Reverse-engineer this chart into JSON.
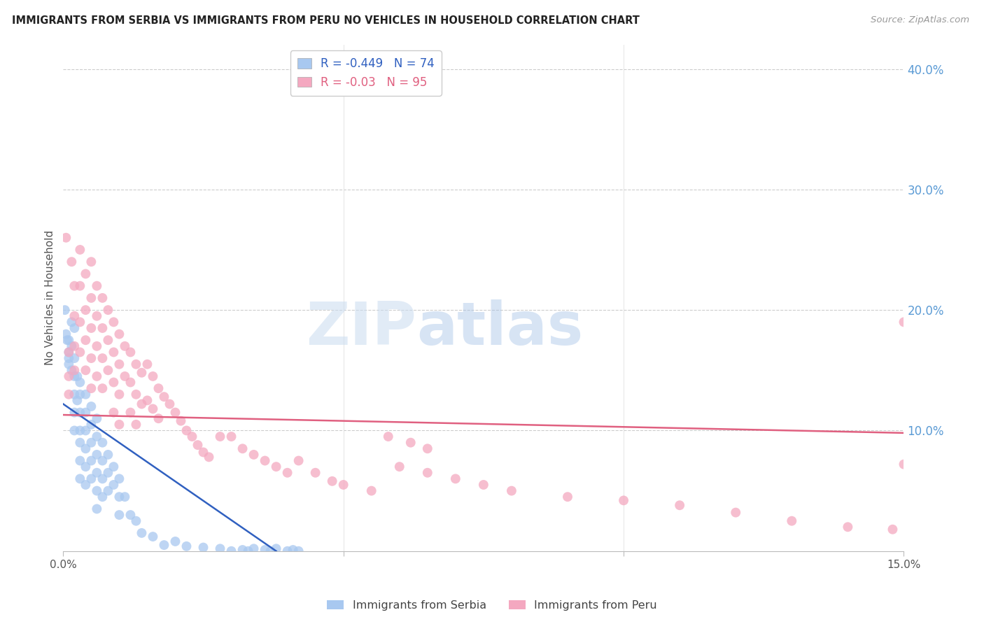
{
  "title": "IMMIGRANTS FROM SERBIA VS IMMIGRANTS FROM PERU NO VEHICLES IN HOUSEHOLD CORRELATION CHART",
  "source": "Source: ZipAtlas.com",
  "ylabel": "No Vehicles in Household",
  "xlim": [
    0.0,
    0.15
  ],
  "ylim": [
    0.0,
    0.42
  ],
  "watermark_zip": "ZIP",
  "watermark_atlas": "atlas",
  "serbia_R": -0.449,
  "serbia_N": 74,
  "peru_R": -0.03,
  "peru_N": 95,
  "serbia_color": "#A8C8F0",
  "peru_color": "#F4A8C0",
  "serbia_line_color": "#3060C0",
  "peru_line_color": "#E06080",
  "serbia_line_x": [
    0.0,
    0.038
  ],
  "serbia_line_y": [
    0.122,
    0.0
  ],
  "peru_line_x": [
    0.0,
    0.15
  ],
  "peru_line_y": [
    0.113,
    0.098
  ],
  "serbia_x": [
    0.0003,
    0.0005,
    0.0007,
    0.001,
    0.001,
    0.001,
    0.001,
    0.0015,
    0.0015,
    0.0015,
    0.002,
    0.002,
    0.002,
    0.002,
    0.002,
    0.002,
    0.0025,
    0.0025,
    0.003,
    0.003,
    0.003,
    0.003,
    0.003,
    0.003,
    0.003,
    0.004,
    0.004,
    0.004,
    0.004,
    0.004,
    0.004,
    0.005,
    0.005,
    0.005,
    0.005,
    0.005,
    0.006,
    0.006,
    0.006,
    0.006,
    0.006,
    0.006,
    0.007,
    0.007,
    0.007,
    0.007,
    0.008,
    0.008,
    0.008,
    0.009,
    0.009,
    0.01,
    0.01,
    0.01,
    0.011,
    0.012,
    0.013,
    0.014,
    0.016,
    0.018,
    0.02,
    0.022,
    0.025,
    0.028,
    0.03,
    0.032,
    0.033,
    0.034,
    0.036,
    0.037,
    0.038,
    0.04,
    0.041,
    0.042
  ],
  "serbia_y": [
    0.2,
    0.18,
    0.175,
    0.165,
    0.16,
    0.175,
    0.155,
    0.19,
    0.17,
    0.15,
    0.185,
    0.16,
    0.145,
    0.13,
    0.115,
    0.1,
    0.145,
    0.125,
    0.14,
    0.13,
    0.115,
    0.1,
    0.09,
    0.075,
    0.06,
    0.13,
    0.115,
    0.1,
    0.085,
    0.07,
    0.055,
    0.12,
    0.105,
    0.09,
    0.075,
    0.06,
    0.11,
    0.095,
    0.08,
    0.065,
    0.05,
    0.035,
    0.09,
    0.075,
    0.06,
    0.045,
    0.08,
    0.065,
    0.05,
    0.07,
    0.055,
    0.06,
    0.045,
    0.03,
    0.045,
    0.03,
    0.025,
    0.015,
    0.012,
    0.005,
    0.008,
    0.004,
    0.003,
    0.002,
    0.0,
    0.001,
    0.0,
    0.002,
    0.001,
    0.0,
    0.002,
    0.0,
    0.001,
    0.0
  ],
  "peru_x": [
    0.0005,
    0.001,
    0.001,
    0.001,
    0.0015,
    0.002,
    0.002,
    0.002,
    0.002,
    0.003,
    0.003,
    0.003,
    0.003,
    0.004,
    0.004,
    0.004,
    0.004,
    0.005,
    0.005,
    0.005,
    0.005,
    0.005,
    0.006,
    0.006,
    0.006,
    0.006,
    0.007,
    0.007,
    0.007,
    0.007,
    0.008,
    0.008,
    0.008,
    0.009,
    0.009,
    0.009,
    0.009,
    0.01,
    0.01,
    0.01,
    0.01,
    0.011,
    0.011,
    0.012,
    0.012,
    0.012,
    0.013,
    0.013,
    0.013,
    0.014,
    0.014,
    0.015,
    0.015,
    0.016,
    0.016,
    0.017,
    0.017,
    0.018,
    0.019,
    0.02,
    0.021,
    0.022,
    0.023,
    0.024,
    0.025,
    0.026,
    0.028,
    0.03,
    0.032,
    0.034,
    0.036,
    0.038,
    0.04,
    0.042,
    0.045,
    0.048,
    0.05,
    0.055,
    0.06,
    0.065,
    0.07,
    0.075,
    0.08,
    0.09,
    0.1,
    0.11,
    0.12,
    0.13,
    0.14,
    0.148,
    0.15,
    0.15,
    0.058,
    0.062,
    0.065
  ],
  "peru_y": [
    0.26,
    0.165,
    0.145,
    0.13,
    0.24,
    0.22,
    0.195,
    0.17,
    0.15,
    0.25,
    0.22,
    0.19,
    0.165,
    0.23,
    0.2,
    0.175,
    0.15,
    0.24,
    0.21,
    0.185,
    0.16,
    0.135,
    0.22,
    0.195,
    0.17,
    0.145,
    0.21,
    0.185,
    0.16,
    0.135,
    0.2,
    0.175,
    0.15,
    0.19,
    0.165,
    0.14,
    0.115,
    0.18,
    0.155,
    0.13,
    0.105,
    0.17,
    0.145,
    0.165,
    0.14,
    0.115,
    0.155,
    0.13,
    0.105,
    0.148,
    0.122,
    0.155,
    0.125,
    0.145,
    0.118,
    0.135,
    0.11,
    0.128,
    0.122,
    0.115,
    0.108,
    0.1,
    0.095,
    0.088,
    0.082,
    0.078,
    0.095,
    0.095,
    0.085,
    0.08,
    0.075,
    0.07,
    0.065,
    0.075,
    0.065,
    0.058,
    0.055,
    0.05,
    0.07,
    0.065,
    0.06,
    0.055,
    0.05,
    0.045,
    0.042,
    0.038,
    0.032,
    0.025,
    0.02,
    0.018,
    0.19,
    0.072,
    0.095,
    0.09,
    0.085
  ]
}
